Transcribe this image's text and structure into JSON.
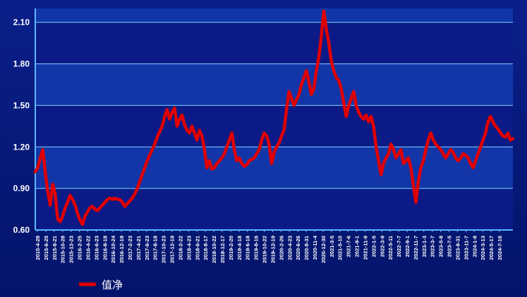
{
  "colors": {
    "background": "#061a78",
    "plot_band_dark": "#0b1a86",
    "plot_band_light": "#1236a8",
    "gridline": "#7fd3ff",
    "axis": "#5ab8ff",
    "series": "#e00000"
  },
  "chart_data": {
    "type": "line",
    "title": "",
    "xlabel": "",
    "ylabel": "",
    "ylim": [
      0.6,
      2.2
    ],
    "yticks": [
      "0.60",
      "0.90",
      "1.20",
      "1.50",
      "1.80",
      "2.10"
    ],
    "grid": true,
    "legend_position": "bottom-left",
    "x_tick_labels": [
      "2015-4-28",
      "2015-6-25",
      "2015-8-21",
      "2015-10-28",
      "2015-12-23",
      "2016-2-25",
      "2016-4-22",
      "2016-6-23",
      "2016-8-18",
      "2016-10-24",
      "2016-12-19",
      "2017-2-23",
      "2017-4-21",
      "2017-6-23",
      "2017-8-18",
      "2017-10-23",
      "2017-12-19",
      "2018-2-22",
      "2018-4-23",
      "2018-6-21",
      "2018-8-17",
      "2018-10-22",
      "2018-12-17",
      "2019-2-20",
      "2019-4-18",
      "2019-6-18",
      "2019-8-16",
      "2019-10-22",
      "2019-12-19",
      "2020-2-26",
      "2020-4-23",
      "2020-6-26",
      "2020-8-31",
      "2020-11-4",
      "2020-12-30",
      "2021-3-5",
      "2021-5-10",
      "2021-7-6",
      "2021-9-1",
      "2021-11-9",
      "2022-1-5",
      "2022-3-9",
      "2022-5-11",
      "2022-7-7",
      "2022-9-1",
      "2022-11-7",
      "2023-1-3",
      "2023-3-7",
      "2023-5-8",
      "2023-7-5",
      "2023-8-31",
      "2023-11-7",
      "2024-1-8",
      "2024-3-13",
      "2024-5-17",
      "2024-7-16"
    ],
    "series": [
      {
        "name": "值净",
        "color": "#e00000",
        "values": [
          1.02,
          1.05,
          1.12,
          1.18,
          1.02,
          0.88,
          0.78,
          0.93,
          0.86,
          0.68,
          0.66,
          0.7,
          0.76,
          0.8,
          0.85,
          0.82,
          0.78,
          0.72,
          0.67,
          0.64,
          0.7,
          0.73,
          0.76,
          0.77,
          0.75,
          0.74,
          0.76,
          0.78,
          0.8,
          0.82,
          0.83,
          0.82,
          0.83,
          0.82,
          0.82,
          0.8,
          0.77,
          0.79,
          0.81,
          0.83,
          0.86,
          0.9,
          0.95,
          1.0,
          1.05,
          1.1,
          1.14,
          1.18,
          1.22,
          1.27,
          1.31,
          1.35,
          1.42,
          1.47,
          1.4,
          1.45,
          1.48,
          1.35,
          1.4,
          1.43,
          1.36,
          1.32,
          1.3,
          1.35,
          1.3,
          1.25,
          1.32,
          1.28,
          1.18,
          1.05,
          1.1,
          1.04,
          1.05,
          1.08,
          1.1,
          1.12,
          1.15,
          1.2,
          1.25,
          1.3,
          1.18,
          1.1,
          1.12,
          1.08,
          1.06,
          1.07,
          1.1,
          1.11,
          1.12,
          1.15,
          1.18,
          1.25,
          1.3,
          1.28,
          1.22,
          1.08,
          1.16,
          1.2,
          1.23,
          1.28,
          1.32,
          1.47,
          1.6,
          1.55,
          1.5,
          1.54,
          1.58,
          1.65,
          1.7,
          1.75,
          1.67,
          1.58,
          1.62,
          1.75,
          1.85,
          2.0,
          2.18,
          2.05,
          1.95,
          1.82,
          1.75,
          1.7,
          1.68,
          1.62,
          1.52,
          1.42,
          1.5,
          1.55,
          1.6,
          1.5,
          1.45,
          1.42,
          1.4,
          1.43,
          1.38,
          1.42,
          1.35,
          1.2,
          1.1,
          1.0,
          1.08,
          1.12,
          1.15,
          1.22,
          1.18,
          1.12,
          1.15,
          1.18,
          1.08,
          1.1,
          1.12,
          1.05,
          0.92,
          0.8,
          0.95,
          1.05,
          1.1,
          1.18,
          1.25,
          1.3,
          1.25,
          1.22,
          1.2,
          1.18,
          1.15,
          1.12,
          1.15,
          1.18,
          1.16,
          1.12,
          1.1,
          1.12,
          1.15,
          1.14,
          1.12,
          1.08,
          1.05,
          1.1,
          1.15,
          1.2,
          1.25,
          1.3,
          1.38,
          1.42,
          1.38,
          1.35,
          1.33,
          1.3,
          1.28,
          1.27,
          1.3,
          1.25,
          1.26
        ]
      }
    ]
  }
}
